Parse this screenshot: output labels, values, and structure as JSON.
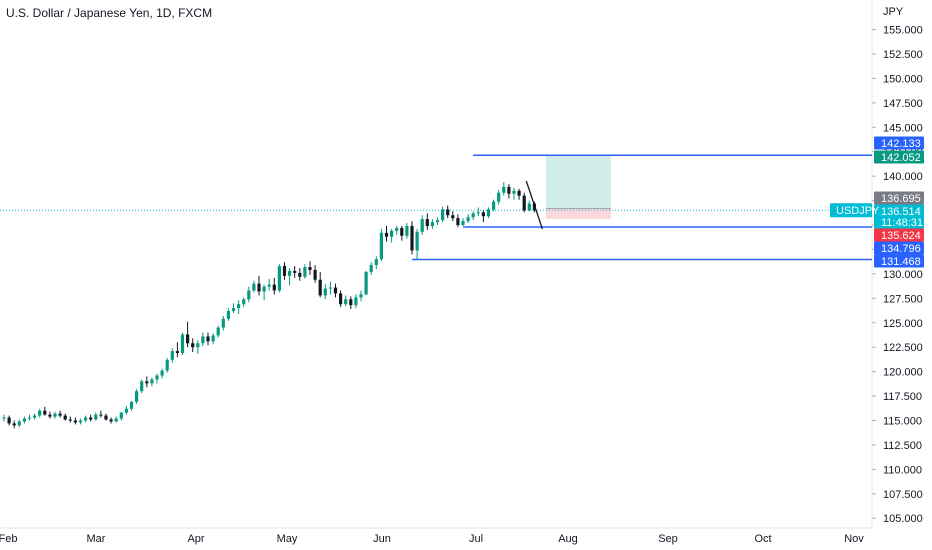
{
  "header": {
    "title": "U.S. Dollar / Japanese Yen, 1D, FXCM"
  },
  "chart_data": {
    "type": "candlestick",
    "symbol": "USDJPY",
    "currency_label": "JPY",
    "x_tick_labels": [
      "Feb",
      "Mar",
      "Apr",
      "May",
      "Jun",
      "Jul",
      "Aug",
      "Sep",
      "Oct",
      "Nov"
    ],
    "y_ticks": [
      "105.000",
      "107.500",
      "110.000",
      "112.500",
      "115.000",
      "117.500",
      "120.000",
      "122.500",
      "125.000",
      "127.500",
      "130.000",
      "132.500",
      "135.000",
      "137.500",
      "140.000",
      "142.500",
      "145.000",
      "147.500",
      "150.000",
      "152.500",
      "155.000"
    ],
    "ylim": [
      104,
      157
    ],
    "price_labels": [
      {
        "value": "142.133",
        "color": "#2962ff"
      },
      {
        "value": "142.052",
        "color": "#089981"
      },
      {
        "value": "136.695",
        "color": "#787b86"
      },
      {
        "value": "136.514",
        "color": "#00bcd4"
      },
      {
        "value": "11:48:31",
        "color": "#00bcd4"
      },
      {
        "value": "135.624",
        "color": "#f23645"
      },
      {
        "value": "134.796",
        "color": "#2962ff"
      },
      {
        "value": "131.468",
        "color": "#2962ff"
      }
    ],
    "symbol_tag": {
      "text": "USDJPY",
      "color": "#00bcd4"
    },
    "horizontal_levels": [
      142.133,
      134.796,
      131.468
    ],
    "current_price": 136.514,
    "position": {
      "entry": 136.695,
      "target": 142.052,
      "stop": 135.624
    },
    "colors": {
      "up": "#089981",
      "down": "#131722",
      "level": "#2962ff",
      "profit": "#d1ede7",
      "loss": "#fbd7dc"
    },
    "candles": [
      [
        115.2,
        115.6,
        114.9,
        115.3
      ],
      [
        115.3,
        115.5,
        114.5,
        114.7
      ],
      [
        114.7,
        115.0,
        114.2,
        114.5
      ],
      [
        114.5,
        115.1,
        114.3,
        114.9
      ],
      [
        114.9,
        115.4,
        114.7,
        115.2
      ],
      [
        115.2,
        115.6,
        115.0,
        115.3
      ],
      [
        115.3,
        115.7,
        115.1,
        115.5
      ],
      [
        115.5,
        116.2,
        115.3,
        116.0
      ],
      [
        116.0,
        116.4,
        115.5,
        115.6
      ],
      [
        115.6,
        115.9,
        115.2,
        115.4
      ],
      [
        115.4,
        115.9,
        115.2,
        115.7
      ],
      [
        115.7,
        116.0,
        115.3,
        115.5
      ],
      [
        115.5,
        115.7,
        115.0,
        115.1
      ],
      [
        115.1,
        115.4,
        114.8,
        115.0
      ],
      [
        115.0,
        115.3,
        114.6,
        114.8
      ],
      [
        114.8,
        115.2,
        114.6,
        115.0
      ],
      [
        115.0,
        115.5,
        114.8,
        115.3
      ],
      [
        115.3,
        115.6,
        114.9,
        115.1
      ],
      [
        115.1,
        115.8,
        115.0,
        115.6
      ],
      [
        115.6,
        116.0,
        115.3,
        115.5
      ],
      [
        115.5,
        115.7,
        115.0,
        115.1
      ],
      [
        115.1,
        115.3,
        114.7,
        114.9
      ],
      [
        114.9,
        115.4,
        114.8,
        115.2
      ],
      [
        115.2,
        115.9,
        115.0,
        115.8
      ],
      [
        115.8,
        116.5,
        115.6,
        116.2
      ],
      [
        116.2,
        117.0,
        116.0,
        116.9
      ],
      [
        116.9,
        118.2,
        116.7,
        118.0
      ],
      [
        118.0,
        119.2,
        117.8,
        119.0
      ],
      [
        119.0,
        119.5,
        118.4,
        118.8
      ],
      [
        118.8,
        119.4,
        118.5,
        119.2
      ],
      [
        119.2,
        119.8,
        118.8,
        119.6
      ],
      [
        119.6,
        120.3,
        119.3,
        120.1
      ],
      [
        120.1,
        121.4,
        119.9,
        121.2
      ],
      [
        121.2,
        122.4,
        120.9,
        122.1
      ],
      [
        122.1,
        123.0,
        121.5,
        121.9
      ],
      [
        121.9,
        124.0,
        121.7,
        123.8
      ],
      [
        123.8,
        125.1,
        122.5,
        122.9
      ],
      [
        122.9,
        123.4,
        122.0,
        122.5
      ],
      [
        122.5,
        123.2,
        121.8,
        122.9
      ],
      [
        122.9,
        124.0,
        122.6,
        123.6
      ],
      [
        123.6,
        124.0,
        122.7,
        123.1
      ],
      [
        123.1,
        123.9,
        122.8,
        123.7
      ],
      [
        123.7,
        124.7,
        123.5,
        124.5
      ],
      [
        124.5,
        125.7,
        124.2,
        125.4
      ],
      [
        125.4,
        126.5,
        125.2,
        126.2
      ],
      [
        126.2,
        127.0,
        126.0,
        126.5
      ],
      [
        126.5,
        127.3,
        125.9,
        126.9
      ],
      [
        126.9,
        127.6,
        126.6,
        127.4
      ],
      [
        127.4,
        128.7,
        127.1,
        128.3
      ],
      [
        128.3,
        129.3,
        128.1,
        129.0
      ],
      [
        129.0,
        129.8,
        127.8,
        128.2
      ],
      [
        128.2,
        128.9,
        127.3,
        128.7
      ],
      [
        128.7,
        129.5,
        128.3,
        128.9
      ],
      [
        128.9,
        129.6,
        127.9,
        128.3
      ],
      [
        128.3,
        131.0,
        128.1,
        130.8
      ],
      [
        130.8,
        131.2,
        129.4,
        129.8
      ],
      [
        129.8,
        130.6,
        128.8,
        130.3
      ],
      [
        130.3,
        130.8,
        129.6,
        130.1
      ],
      [
        130.1,
        130.6,
        129.3,
        129.7
      ],
      [
        129.7,
        131.0,
        129.5,
        130.7
      ],
      [
        130.7,
        131.3,
        129.9,
        130.4
      ],
      [
        130.4,
        130.9,
        129.1,
        129.4
      ],
      [
        129.4,
        130.2,
        127.6,
        127.8
      ],
      [
        127.8,
        129.0,
        127.4,
        128.5
      ],
      [
        128.5,
        129.2,
        127.9,
        128.6
      ],
      [
        128.6,
        129.0,
        127.6,
        128.0
      ],
      [
        128.0,
        128.3,
        126.6,
        126.9
      ],
      [
        126.9,
        127.8,
        126.7,
        127.4
      ],
      [
        127.4,
        127.7,
        126.4,
        126.8
      ],
      [
        126.8,
        127.9,
        126.5,
        127.6
      ],
      [
        127.6,
        128.3,
        127.2,
        127.9
      ],
      [
        127.9,
        130.3,
        127.8,
        130.2
      ],
      [
        130.2,
        131.2,
        129.9,
        130.9
      ],
      [
        130.9,
        131.8,
        130.5,
        131.5
      ],
      [
        131.5,
        134.6,
        131.3,
        134.2
      ],
      [
        134.2,
        134.9,
        133.3,
        133.8
      ],
      [
        133.8,
        134.6,
        133.2,
        134.4
      ],
      [
        134.4,
        134.9,
        134.0,
        134.7
      ],
      [
        134.7,
        134.9,
        133.4,
        133.9
      ],
      [
        133.9,
        135.2,
        133.6,
        134.9
      ],
      [
        134.9,
        135.4,
        132.0,
        132.4
      ],
      [
        132.4,
        134.6,
        131.5,
        134.3
      ],
      [
        134.3,
        136.0,
        134.0,
        135.6
      ],
      [
        135.6,
        136.2,
        134.5,
        134.9
      ],
      [
        134.9,
        135.6,
        134.6,
        135.3
      ],
      [
        135.3,
        135.8,
        135.0,
        135.5
      ],
      [
        135.5,
        136.9,
        135.3,
        136.6
      ],
      [
        136.6,
        137.0,
        135.7,
        136.0
      ],
      [
        136.0,
        136.4,
        135.4,
        135.7
      ],
      [
        135.7,
        136.1,
        134.8,
        135.0
      ],
      [
        135.0,
        135.7,
        134.9,
        135.4
      ],
      [
        135.4,
        136.1,
        135.2,
        135.8
      ],
      [
        135.8,
        136.4,
        135.5,
        136.2
      ],
      [
        136.2,
        136.8,
        135.9,
        136.3
      ],
      [
        136.3,
        136.5,
        135.3,
        135.9
      ],
      [
        135.9,
        136.8,
        135.7,
        136.6
      ],
      [
        136.6,
        137.6,
        136.4,
        137.4
      ],
      [
        137.4,
        138.6,
        137.1,
        138.3
      ],
      [
        138.3,
        139.4,
        138.0,
        138.9
      ],
      [
        138.9,
        139.2,
        137.7,
        138.2
      ],
      [
        138.2,
        138.8,
        137.6,
        138.5
      ],
      [
        138.5,
        138.7,
        137.6,
        138.0
      ],
      [
        138.0,
        138.3,
        136.3,
        136.5
      ],
      [
        136.5,
        137.5,
        136.4,
        137.2
      ],
      [
        137.2,
        137.4,
        136.3,
        136.5
      ]
    ]
  }
}
